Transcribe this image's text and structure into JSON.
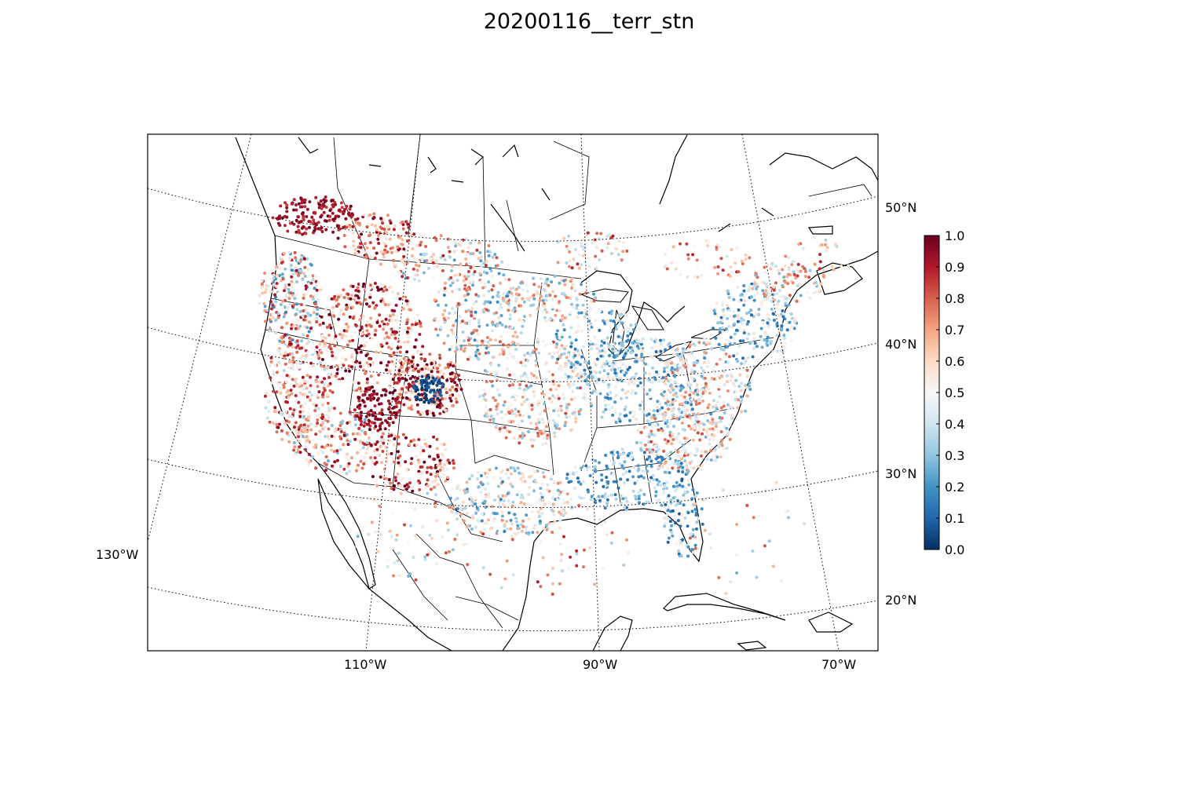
{
  "title": "20200116__terr_stn",
  "chart_data": {
    "type": "scatter",
    "title": "20200116__terr_stn",
    "projection": "conic",
    "lat_labels": [
      "50°N",
      "40°N",
      "30°N",
      "20°N"
    ],
    "lon_labels": [
      "130°W",
      "110°W",
      "90°W",
      "70°W"
    ],
    "colorbar": {
      "cmap": "RdBu_r",
      "range": [
        0.0,
        1.0
      ],
      "ticks": [
        "1.0",
        "0.9",
        "0.8",
        "0.7",
        "0.6",
        "0.5",
        "0.4",
        "0.3",
        "0.2",
        "0.1",
        "0.0"
      ],
      "stops": [
        "#053061",
        "#2166ac",
        "#4393c3",
        "#92c5de",
        "#d1e5f0",
        "#f7f7f7",
        "#fddbc7",
        "#f4a582",
        "#d6604d",
        "#b2182b",
        "#67001f"
      ]
    }
  }
}
